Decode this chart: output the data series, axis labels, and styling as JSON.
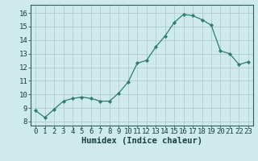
{
  "x": [
    0,
    1,
    2,
    3,
    4,
    5,
    6,
    7,
    8,
    9,
    10,
    11,
    12,
    13,
    14,
    15,
    16,
    17,
    18,
    19,
    20,
    21,
    22,
    23
  ],
  "y": [
    8.8,
    8.3,
    8.9,
    9.5,
    9.7,
    9.8,
    9.7,
    9.5,
    9.5,
    10.1,
    10.9,
    12.3,
    12.5,
    13.5,
    14.3,
    15.3,
    15.9,
    15.8,
    15.5,
    15.1,
    13.2,
    13.0,
    12.2,
    12.4
  ],
  "line_color": "#2e7d6e",
  "marker": "D",
  "marker_size": 2.2,
  "bg_color": "#ceeaea",
  "grid_color": "#b0cccc",
  "xlabel": "Humidex (Indice chaleur)",
  "ylabel_ticks": [
    8,
    9,
    10,
    11,
    12,
    13,
    14,
    15,
    16
  ],
  "xlim": [
    -0.5,
    23.5
  ],
  "ylim": [
    7.7,
    16.6
  ],
  "tick_fontsize": 6.5,
  "xlabel_fontsize": 7.5
}
